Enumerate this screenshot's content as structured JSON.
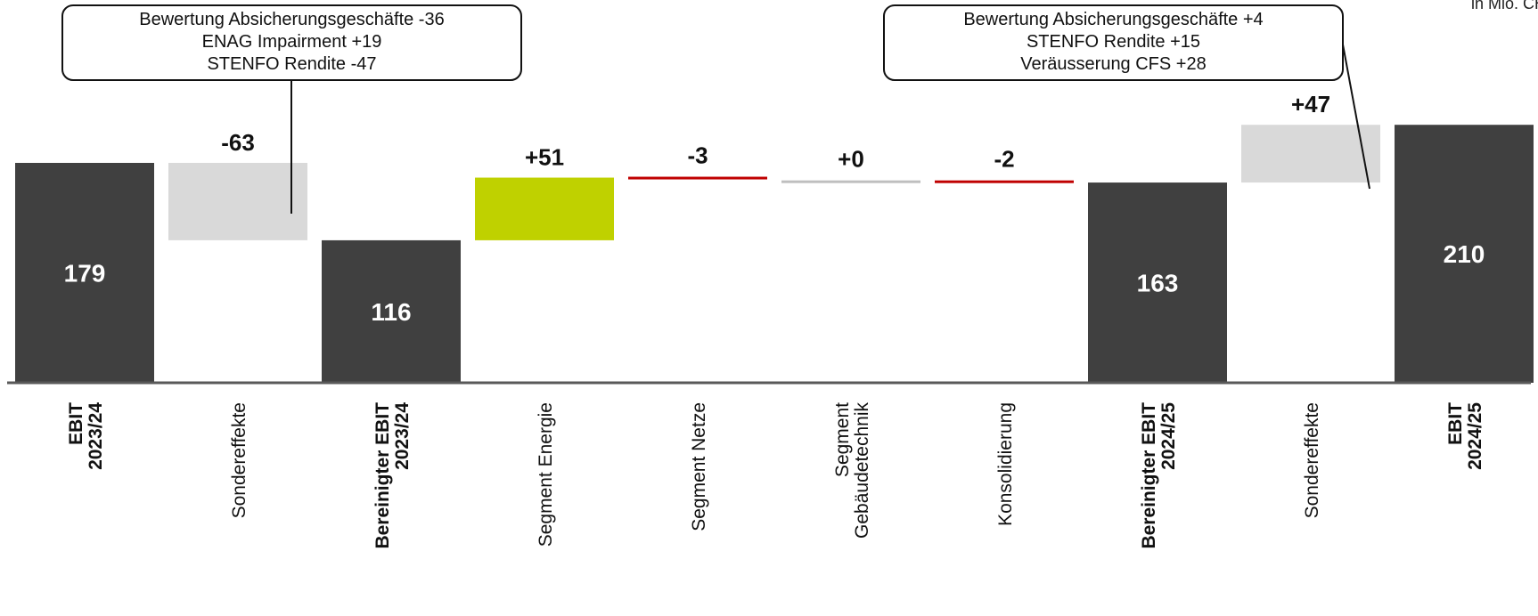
{
  "unit_label": "in Mio. CHF",
  "chart_data": {
    "type": "waterfall",
    "title": "",
    "xlabel": "",
    "ylabel": "",
    "ylim": [
      0,
      240
    ],
    "grid": false,
    "legend": "none",
    "colors": {
      "total": "#404040",
      "sondereffekte": "#D9D9D9",
      "increase": "#BFD100",
      "decrease": "#C00000",
      "neutral": "#BFBFBF",
      "axis": "#595959"
    },
    "categories": [
      {
        "label_lines": [
          "EBIT",
          "2023/24"
        ],
        "bold": true
      },
      {
        "label_lines": [
          "Sondereffekte"
        ],
        "bold": false
      },
      {
        "label_lines": [
          "Bereinigter EBIT",
          "2023/24"
        ],
        "bold": true
      },
      {
        "label_lines": [
          "Segment Energie"
        ],
        "bold": false
      },
      {
        "label_lines": [
          "Segment Netze"
        ],
        "bold": false
      },
      {
        "label_lines": [
          "Segment",
          "Gebäudetechnik"
        ],
        "bold": false
      },
      {
        "label_lines": [
          "Konsolidierung"
        ],
        "bold": false
      },
      {
        "label_lines": [
          "Bereinigter EBIT",
          "2024/25"
        ],
        "bold": true
      },
      {
        "label_lines": [
          "Sondereffekte"
        ],
        "bold": false
      },
      {
        "label_lines": [
          "EBIT",
          "2024/25"
        ],
        "bold": true
      }
    ],
    "steps": [
      {
        "kind": "total",
        "start": 0,
        "end": 179,
        "label": "179",
        "style": "total"
      },
      {
        "kind": "delta",
        "start": 179,
        "end": 116,
        "label": "-63",
        "style": "sondereffekte"
      },
      {
        "kind": "total",
        "start": 0,
        "end": 116,
        "label": "116",
        "style": "total"
      },
      {
        "kind": "delta",
        "start": 116,
        "end": 167,
        "label": "+51",
        "style": "increase"
      },
      {
        "kind": "delta",
        "start": 167,
        "end": 164,
        "label": "-3",
        "style": "decrease",
        "thin": true
      },
      {
        "kind": "delta",
        "start": 164,
        "end": 164,
        "label": "+0",
        "style": "neutral",
        "thin": true
      },
      {
        "kind": "delta",
        "start": 164,
        "end": 163,
        "label": "-2",
        "style": "decrease",
        "thin": true
      },
      {
        "kind": "total",
        "start": 0,
        "end": 163,
        "label": "163",
        "style": "total"
      },
      {
        "kind": "delta",
        "start": 163,
        "end": 210,
        "label": "+47",
        "style": "sondereffekte"
      },
      {
        "kind": "total",
        "start": 0,
        "end": 210,
        "label": "210",
        "style": "total"
      }
    ],
    "annotations": [
      {
        "target_index": 1,
        "lines": [
          "Bewertung Absicherungsgeschäfte -36",
          "ENAG Impairment +19",
          "STENFO Rendite -47"
        ]
      },
      {
        "target_index": 8,
        "lines": [
          "Bewertung Absicherungsgeschäfte +4",
          "STENFO Rendite +15",
          "Veräusserung CFS +28"
        ]
      }
    ]
  }
}
